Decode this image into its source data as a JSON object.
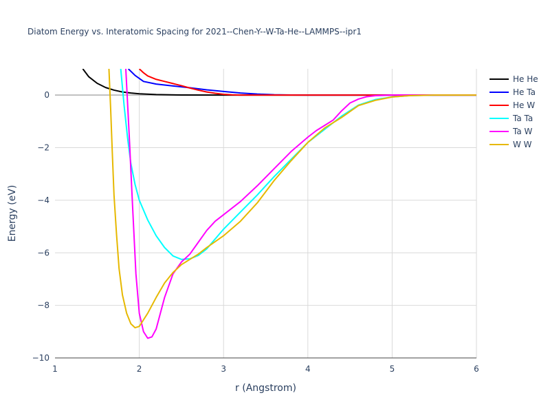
{
  "chart_data": {
    "type": "line",
    "title": "Diatom Energy vs. Interatomic Spacing for 2021--Chen-Y--W-Ta-He--LAMMPS--ipr1",
    "xlabel": "r (Angstrom)",
    "ylabel": "Energy (eV)",
    "xlim": [
      1,
      6
    ],
    "ylim": [
      -10,
      1
    ],
    "xticks": [
      1,
      2,
      3,
      4,
      5,
      6
    ],
    "yticks": [
      -10,
      -8,
      -6,
      -4,
      -2,
      0
    ],
    "grid": true,
    "legend_position": "top-right",
    "series": [
      {
        "name": "He He",
        "color": "#000000",
        "x": [
          1.33,
          1.4,
          1.5,
          1.6,
          1.7,
          1.8,
          1.9,
          2.0,
          2.2,
          2.5,
          3.0,
          3.5,
          4.0,
          5.0,
          6.0
        ],
        "y": [
          1.0,
          0.7,
          0.45,
          0.29,
          0.19,
          0.12,
          0.08,
          0.05,
          0.02,
          0.005,
          0.0,
          0.0,
          0.0,
          0.0,
          0.0
        ]
      },
      {
        "name": "He Ta",
        "color": "#0000ff",
        "x": [
          1.87,
          1.95,
          2.05,
          2.2,
          2.4,
          2.6,
          2.8,
          3.0,
          3.2,
          3.4,
          3.6,
          3.8,
          4.0,
          4.5,
          5.0,
          6.0
        ],
        "y": [
          1.0,
          0.75,
          0.52,
          0.42,
          0.35,
          0.28,
          0.2,
          0.14,
          0.08,
          0.04,
          0.015,
          0.005,
          0.0,
          0.0,
          0.0,
          0.0
        ]
      },
      {
        "name": "He W",
        "color": "#ff0000",
        "x": [
          2.0,
          2.05,
          2.1,
          2.2,
          2.3,
          2.4,
          2.5,
          2.6,
          2.7,
          2.8,
          2.9,
          3.0,
          3.1,
          3.2,
          3.5,
          4.0,
          5.0,
          6.0
        ],
        "y": [
          1.0,
          0.85,
          0.73,
          0.6,
          0.52,
          0.44,
          0.36,
          0.27,
          0.19,
          0.12,
          0.07,
          0.03,
          0.01,
          0.0,
          0.0,
          0.0,
          0.0,
          0.0
        ]
      },
      {
        "name": "Ta Ta",
        "color": "#00ffff",
        "x": [
          1.78,
          1.82,
          1.86,
          1.9,
          1.95,
          2.0,
          2.1,
          2.2,
          2.3,
          2.4,
          2.5,
          2.6,
          2.7,
          2.8,
          3.0,
          3.2,
          3.4,
          3.6,
          3.8,
          4.0,
          4.2,
          4.4,
          4.6,
          4.8,
          5.0,
          5.2,
          5.5,
          6.0
        ],
        "y": [
          1.0,
          -0.4,
          -1.6,
          -2.6,
          -3.4,
          -4.0,
          -4.75,
          -5.35,
          -5.8,
          -6.12,
          -6.25,
          -6.23,
          -6.1,
          -5.85,
          -5.1,
          -4.45,
          -3.8,
          -3.1,
          -2.45,
          -1.8,
          -1.3,
          -0.8,
          -0.38,
          -0.17,
          -0.07,
          -0.02,
          0.0,
          0.0
        ]
      },
      {
        "name": "Ta W",
        "color": "#ff00ff",
        "x": [
          1.84,
          1.88,
          1.92,
          1.96,
          2.0,
          2.05,
          2.1,
          2.15,
          2.2,
          2.3,
          2.4,
          2.5,
          2.6,
          2.7,
          2.8,
          2.9,
          3.0,
          3.2,
          3.4,
          3.6,
          3.8,
          4.0,
          4.1,
          4.2,
          4.3,
          4.4,
          4.5,
          4.6,
          4.7,
          4.8,
          5.0,
          6.0
        ],
        "y": [
          1.0,
          -1.5,
          -4.2,
          -6.8,
          -8.3,
          -9.0,
          -9.25,
          -9.2,
          -8.9,
          -7.7,
          -6.8,
          -6.35,
          -6.05,
          -5.6,
          -5.15,
          -4.8,
          -4.55,
          -4.05,
          -3.45,
          -2.8,
          -2.15,
          -1.6,
          -1.35,
          -1.15,
          -0.95,
          -0.6,
          -0.3,
          -0.15,
          -0.06,
          -0.02,
          0.0,
          0.0
        ]
      },
      {
        "name": "W W",
        "color": "#e6b800",
        "x": [
          1.64,
          1.66,
          1.68,
          1.7,
          1.73,
          1.76,
          1.8,
          1.85,
          1.9,
          1.95,
          2.0,
          2.05,
          2.1,
          2.2,
          2.3,
          2.4,
          2.5,
          2.6,
          2.7,
          2.8,
          3.0,
          3.2,
          3.4,
          3.6,
          3.8,
          4.0,
          4.2,
          4.4,
          4.6,
          4.8,
          5.0,
          5.2,
          5.5,
          6.0
        ],
        "y": [
          1.0,
          -0.5,
          -2.2,
          -3.8,
          -5.3,
          -6.6,
          -7.6,
          -8.3,
          -8.7,
          -8.85,
          -8.8,
          -8.55,
          -8.3,
          -7.7,
          -7.15,
          -6.75,
          -6.45,
          -6.25,
          -6.05,
          -5.8,
          -5.35,
          -4.8,
          -4.1,
          -3.25,
          -2.5,
          -1.8,
          -1.25,
          -0.85,
          -0.4,
          -0.2,
          -0.07,
          -0.02,
          0.0,
          0.0
        ]
      }
    ]
  }
}
